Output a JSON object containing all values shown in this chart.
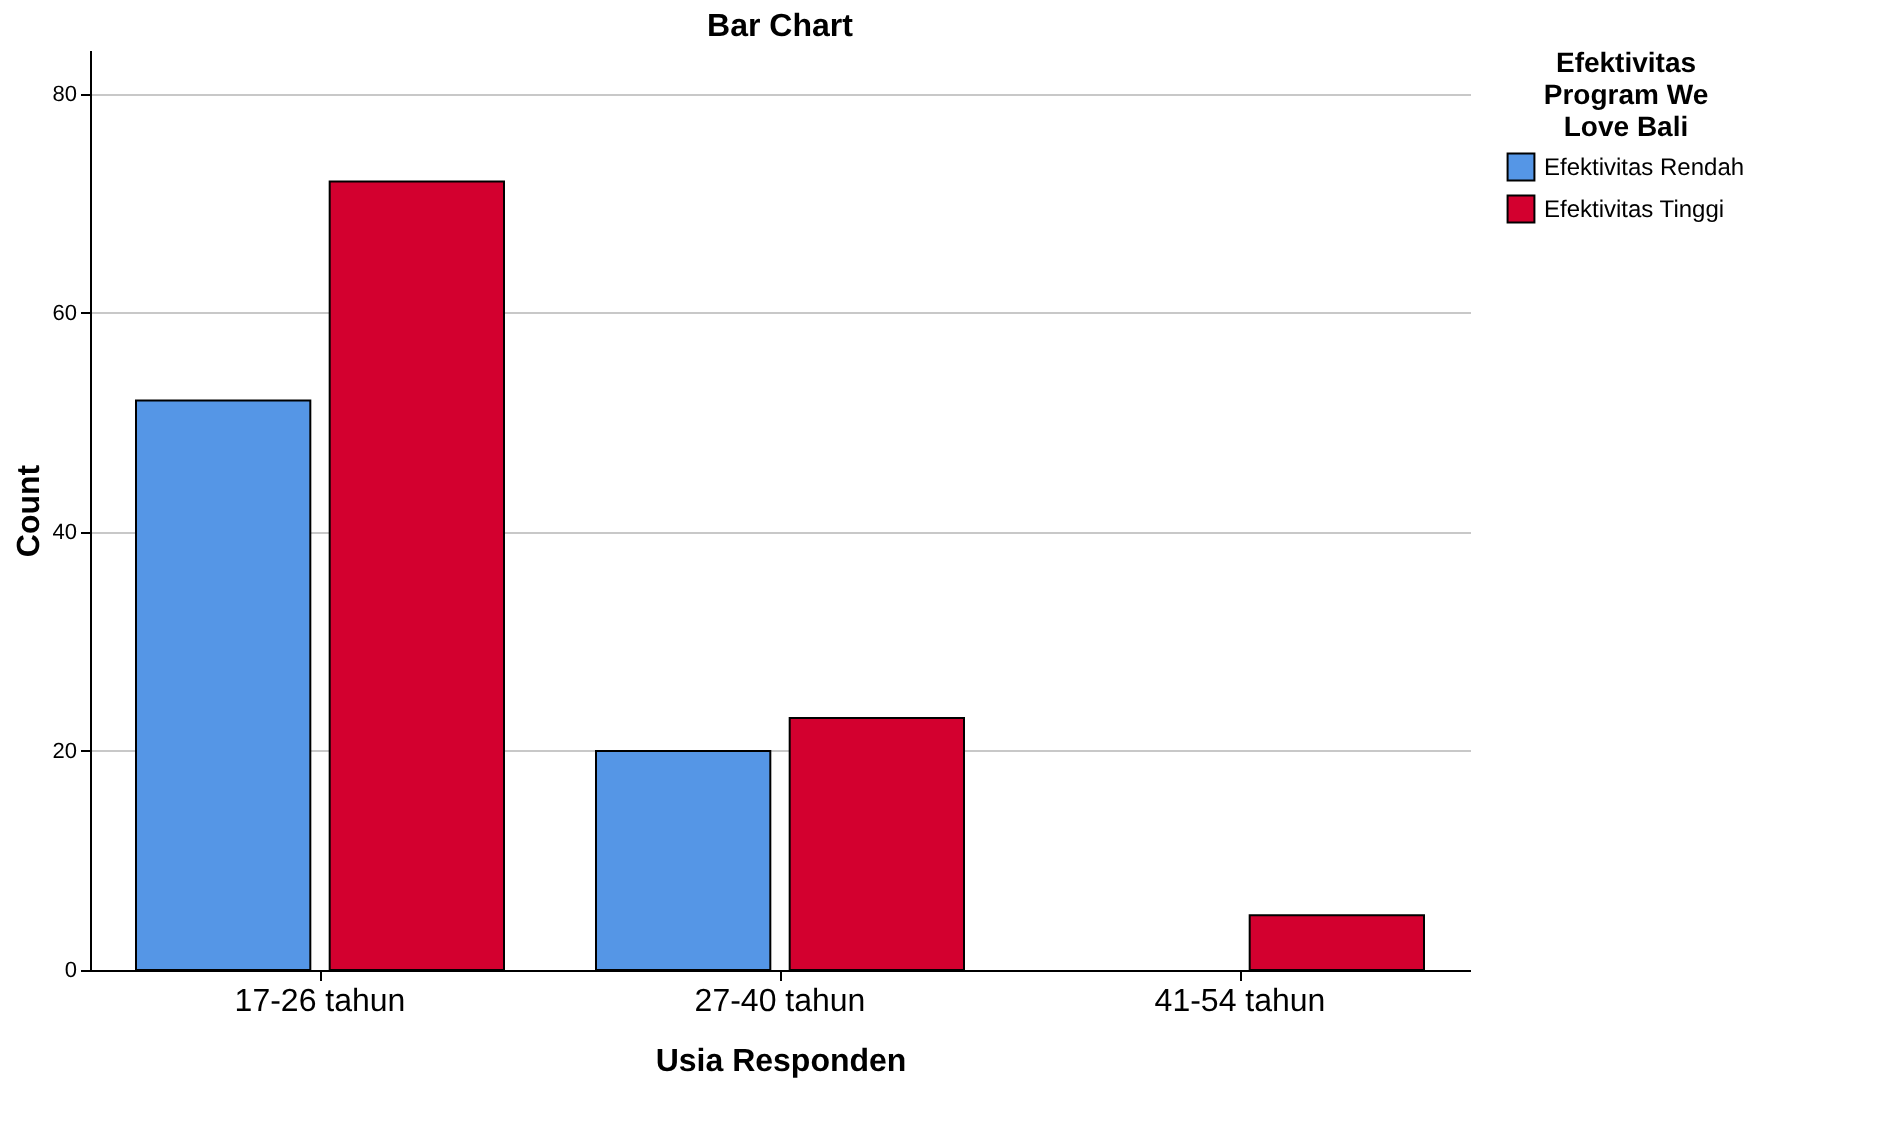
{
  "chart_data": {
    "type": "bar",
    "title": "Bar Chart",
    "xlabel": "Usia Responden",
    "ylabel": "Count",
    "legend_title": "Efektivitas Program We Love Bali",
    "categories": [
      "17-26 tahun",
      "27-40 tahun",
      "41-54 tahun"
    ],
    "series": [
      {
        "name": "Efektivitas Rendah",
        "color": "#5596e6",
        "values": [
          52,
          20,
          null
        ]
      },
      {
        "name": "Efektivitas Tinggi",
        "color": "#d3002f",
        "values": [
          72,
          23,
          5
        ]
      }
    ],
    "ylim": [
      0,
      84
    ],
    "yticks": [
      0,
      20,
      40,
      60,
      80
    ],
    "grid": "y",
    "legend": "top right"
  }
}
